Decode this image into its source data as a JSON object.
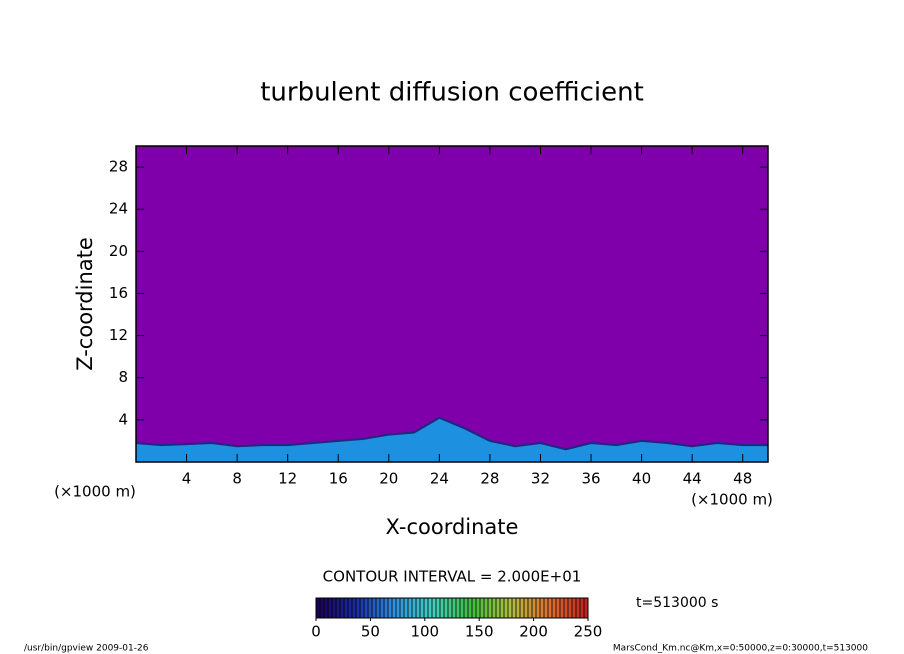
{
  "chart_data": {
    "type": "contour",
    "title": "turbulent diffusion coefficient",
    "xlabel": "X-coordinate",
    "ylabel": "Z-coordinate",
    "x_unit": "(×1000 m)",
    "y_unit": "(×1000 m)",
    "xlim": [
      0,
      50
    ],
    "ylim": [
      0,
      30
    ],
    "xticks": [
      4,
      8,
      12,
      16,
      20,
      24,
      28,
      32,
      36,
      40,
      44,
      48
    ],
    "yticks": [
      4,
      8,
      12,
      16,
      20,
      24,
      28
    ],
    "background_color": "#7f00aa",
    "layer_color": "#1e90e0",
    "layer_edge_color": "#1a2a80",
    "x": [
      0,
      2,
      4,
      6,
      8,
      10,
      12,
      14,
      16,
      18,
      20,
      22,
      24,
      26,
      28,
      30,
      32,
      34,
      36,
      38,
      40,
      42,
      44,
      46,
      48,
      50
    ],
    "values": [
      1.8,
      1.6,
      1.7,
      1.8,
      1.5,
      1.6,
      1.6,
      1.8,
      2.0,
      2.2,
      2.6,
      2.8,
      4.2,
      3.2,
      2.0,
      1.5,
      1.8,
      1.2,
      1.8,
      1.6,
      2.0,
      1.8,
      1.5,
      1.8,
      1.6,
      1.6
    ],
    "contour_interval": "CONTOUR INTERVAL = 2.000E+01",
    "colorbar": {
      "lim": [
        0,
        250
      ],
      "ticks": [
        0,
        50,
        100,
        150,
        200,
        250
      ],
      "colors": [
        "#1a0050",
        "#1a2aa0",
        "#3090e0",
        "#40d0c0",
        "#40c040",
        "#b0c040",
        "#e07030",
        "#c02020"
      ]
    },
    "time_label": "t=513000 s",
    "footer_left": "/usr/bin/gpview  2009-01-26",
    "footer_right": "MarsCond_Km.nc@Km,x=0:50000,z=0:30000,t=513000"
  }
}
